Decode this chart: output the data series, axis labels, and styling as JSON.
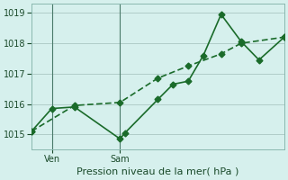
{
  "title": "Pression niveau de la mer( hPa )",
  "background_color": "#d6f0ed",
  "line_color": "#1a6b2a",
  "grid_color": "#b0ccc8",
  "ylim": [
    1014.5,
    1019.3
  ],
  "yticks": [
    1015,
    1016,
    1017,
    1018,
    1019
  ],
  "day_labels": [
    "Ven",
    "Sam"
  ],
  "day_positions": [
    0.08,
    0.35
  ],
  "series1_x": [
    0.0,
    0.08,
    0.17,
    0.35,
    0.37,
    0.5,
    0.56,
    0.62,
    0.68,
    0.75,
    0.83,
    0.9,
    1.0
  ],
  "series1_y": [
    1015.1,
    1015.85,
    1015.9,
    1014.85,
    1015.05,
    1016.15,
    1016.65,
    1016.75,
    1017.6,
    1018.95,
    1018.05,
    1017.45,
    1018.2
  ],
  "series2_x": [
    0.0,
    0.17,
    0.35,
    0.5,
    0.62,
    0.75,
    0.83,
    1.0
  ],
  "series2_y": [
    1015.1,
    1015.95,
    1016.05,
    1016.85,
    1017.25,
    1017.65,
    1018.0,
    1018.2
  ],
  "vline_positions": [
    0.08,
    0.35
  ],
  "marker_size": 3.5,
  "linewidth": 1.2
}
